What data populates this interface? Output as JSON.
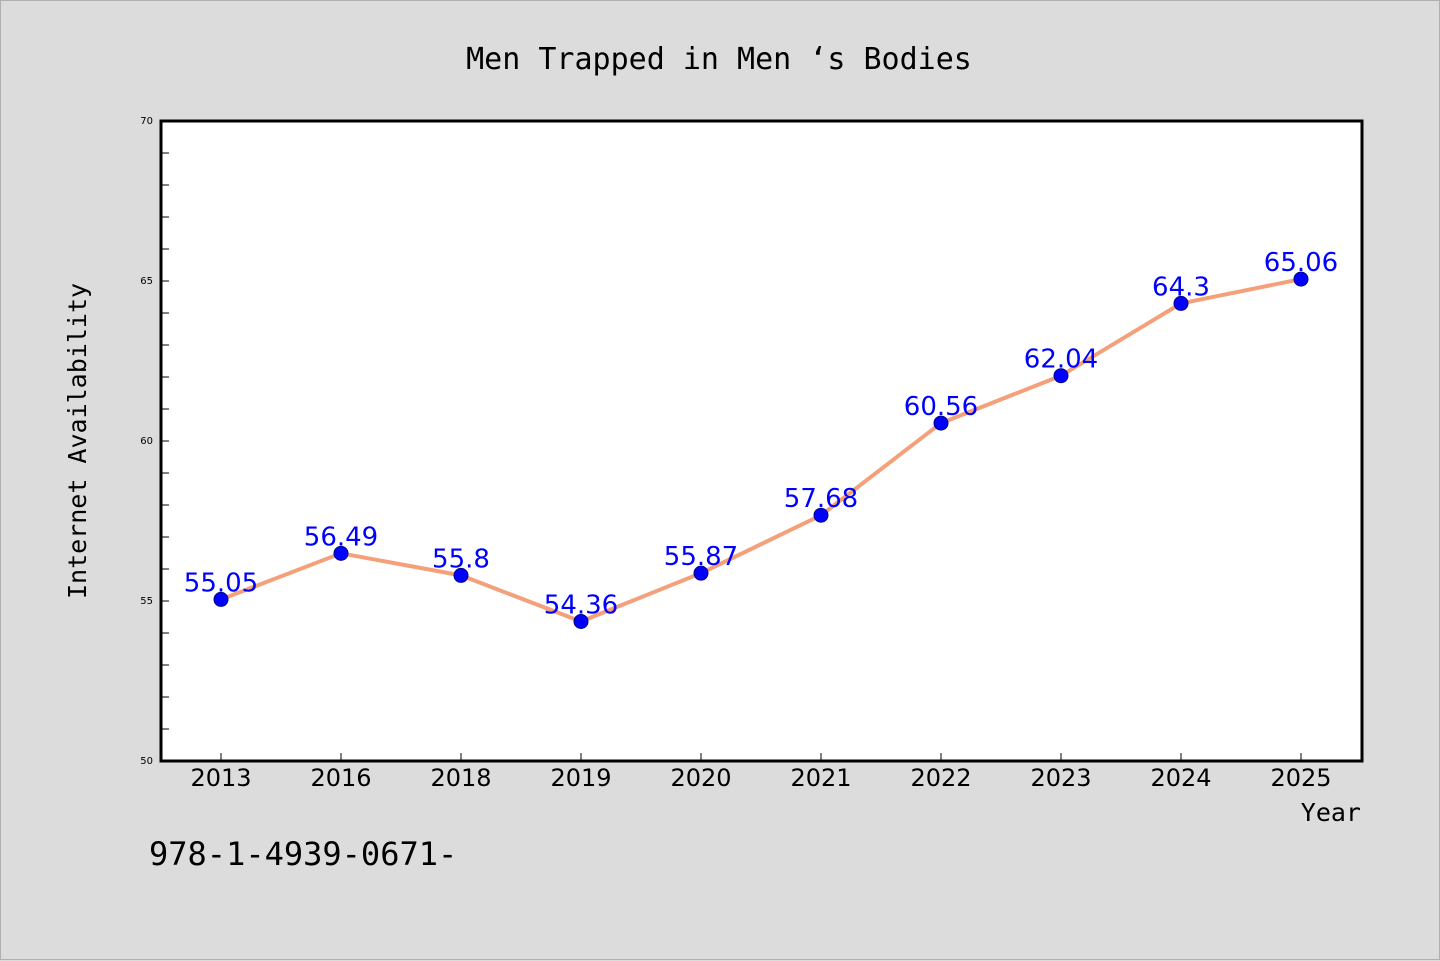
{
  "chart_data": {
    "type": "line",
    "title": "Men Trapped in Men ‘s Bodies",
    "xlabel": "Year",
    "ylabel": "Internet Availability",
    "categories": [
      "2013",
      "2016",
      "2018",
      "2019",
      "2020",
      "2021",
      "2022",
      "2023",
      "2024",
      "2025"
    ],
    "series": [
      {
        "values": [
          55.05,
          56.49,
          55.8,
          54.36,
          55.87,
          57.68,
          60.56,
          62.04,
          64.3,
          65.06
        ],
        "labels": [
          "55.05",
          "56.49",
          "55.8",
          "54.36",
          "55.87",
          "57.68",
          "60.56",
          "62.04",
          "64.3",
          "65.06"
        ]
      }
    ],
    "ylim": [
      50,
      70
    ],
    "yticks": [
      "50",
      "55",
      "60",
      "65",
      "70"
    ],
    "grid": false,
    "legend": "none",
    "colors": {
      "background": "#dcdcdc",
      "plot_background": "#ffffff",
      "line": "#f4a07a",
      "marker": "#0000ff",
      "data_label": "#0000ff"
    }
  },
  "footer": {
    "text": "978-1-4939-0671-"
  }
}
